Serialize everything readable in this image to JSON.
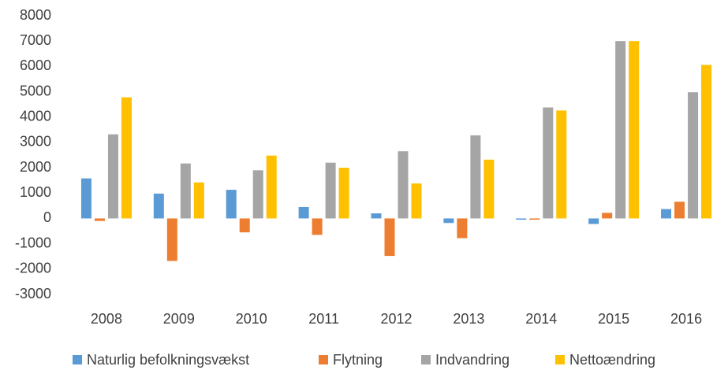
{
  "chart_data": {
    "type": "bar",
    "categories": [
      "2008",
      "2009",
      "2010",
      "2011",
      "2012",
      "2013",
      "2014",
      "2015",
      "2016"
    ],
    "series": [
      {
        "name": "Naturlig befolkningsvækst",
        "color": "#5b9bd5",
        "values": [
          1580,
          980,
          1130,
          450,
          200,
          -180,
          -50,
          -220,
          370
        ]
      },
      {
        "name": "Flytning",
        "color": "#ed7d31",
        "values": [
          -100,
          -1680,
          -550,
          -650,
          -1480,
          -780,
          -50,
          220,
          660
        ]
      },
      {
        "name": "Indvandring",
        "color": "#a5a5a5",
        "values": [
          3320,
          2170,
          1900,
          2200,
          2650,
          3280,
          4380,
          7000,
          4980
        ]
      },
      {
        "name": "Nettoændring",
        "color": "#ffc000",
        "values": [
          4780,
          1420,
          2480,
          2000,
          1380,
          2320,
          4260,
          7000,
          6060
        ]
      }
    ],
    "ylim": [
      -3000,
      8000
    ],
    "yticks": [
      -3000,
      -2000,
      -1000,
      0,
      1000,
      2000,
      3000,
      4000,
      5000,
      6000,
      7000,
      8000
    ],
    "grid": false,
    "legend": "bottom"
  }
}
